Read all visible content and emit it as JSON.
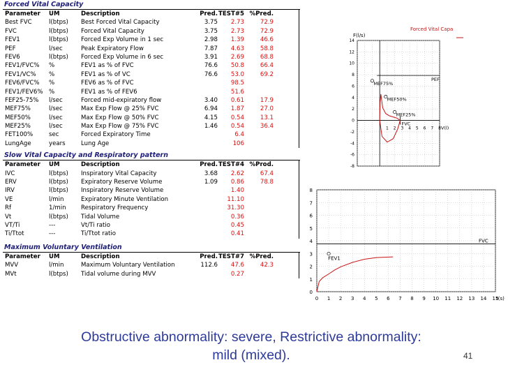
{
  "forced": {
    "title": "Forced Vital Capacity",
    "headers": {
      "param": "Parameter",
      "um": "UM",
      "desc": "Description",
      "pred": "Pred.",
      "test": "TEST#5",
      "pct": "%Pred."
    },
    "rows": [
      {
        "param": "Best FVC",
        "um": "l(btps)",
        "desc": "Best Forced Vital Capacity",
        "pred": "3.75",
        "test": "2.73",
        "pct": "72.9"
      },
      {
        "param": "FVC",
        "um": "l(btps)",
        "desc": "Forced Vital Capacity",
        "pred": "3.75",
        "test": "2.73",
        "pct": "72.9"
      },
      {
        "param": "FEV1",
        "um": "l(btps)",
        "desc": "Forced Exp Volume in 1 sec",
        "pred": "2.98",
        "test": "1.39",
        "pct": "46.6"
      },
      {
        "param": "PEF",
        "um": "l/sec",
        "desc": "Peak Expiratory Flow",
        "pred": "7.87",
        "test": "4.63",
        "pct": "58.8"
      },
      {
        "param": "FEV6",
        "um": "l(btps)",
        "desc": "Forced Exp Volume in 6 sec",
        "pred": "3.91",
        "test": "2.69",
        "pct": "68.8"
      },
      {
        "param": "FEV1/FVC%",
        "um": "%",
        "desc": "FEV1 as % of FVC",
        "pred": "76.6",
        "test": "50.8",
        "pct": "66.4"
      },
      {
        "param": "FEV1/VC%",
        "um": "%",
        "desc": "FEV1 as % of VC",
        "pred": "76.6",
        "test": "53.0",
        "pct": "69.2"
      },
      {
        "param": "FEV6/FVC%",
        "um": "%",
        "desc": "FEV6 as % of FVC",
        "pred": "",
        "test": "98.5",
        "pct": ""
      },
      {
        "param": "FEV1/FEV6%",
        "um": "%",
        "desc": "FEV1 as % of FEV6",
        "pred": "",
        "test": "51.6",
        "pct": ""
      },
      {
        "param": "FEF25-75%",
        "um": "l/sec",
        "desc": "Forced mid-expiratory flow",
        "pred": "3.40",
        "test": "0.61",
        "pct": "17.9"
      },
      {
        "param": "MEF75%",
        "um": "l/sec",
        "desc": "Max Exp Flow @ 25% FVC",
        "pred": "6.94",
        "test": "1.87",
        "pct": "27.0"
      },
      {
        "param": "MEF50%",
        "um": "l/sec",
        "desc": "Max Exp Flow @ 50% FVC",
        "pred": "4.15",
        "test": "0.54",
        "pct": "13.1"
      },
      {
        "param": "MEF25%",
        "um": "l/sec",
        "desc": "Max Exp Flow @ 75% FVC",
        "pred": "1.46",
        "test": "0.54",
        "pct": "36.4"
      },
      {
        "param": "FET100%",
        "um": "sec",
        "desc": "Forced Expiratory Time",
        "pred": "",
        "test": "6.4",
        "pct": ""
      },
      {
        "param": "LungAge",
        "um": "years",
        "desc": "Lung Age",
        "pred": "",
        "test": "106",
        "pct": ""
      }
    ]
  },
  "slow": {
    "title": "Slow Vital Capacity and Respiratory pattern",
    "headers": {
      "param": "Parameter",
      "um": "UM",
      "desc": "Description",
      "pred": "Pred.",
      "test": "TEST#4",
      "pct": "%Prod."
    },
    "rows": [
      {
        "param": "IVC",
        "um": "l(btps)",
        "desc": "Inspiratory Vital Capacity",
        "pred": "3.68",
        "test": "2.62",
        "pct": "67.4"
      },
      {
        "param": "ERV",
        "um": "l(btps)",
        "desc": "Expiratory Reserve Volume",
        "pred": "1.09",
        "test": "0.86",
        "pct": "78.8"
      },
      {
        "param": "IRV",
        "um": "l(btps)",
        "desc": "Inspiratory Reserve Volume",
        "pred": "",
        "test": "1.40",
        "pct": ""
      },
      {
        "param": "VE",
        "um": "l/min",
        "desc": "Expiratory Minute Ventilation",
        "pred": "",
        "test": "11.10",
        "pct": ""
      },
      {
        "param": "Rf",
        "um": "1/min",
        "desc": "Respiratory Frequency",
        "pred": "",
        "test": "31.30",
        "pct": ""
      },
      {
        "param": "Vt",
        "um": "l(btps)",
        "desc": "Tidal Volume",
        "pred": "",
        "test": "0.36",
        "pct": ""
      },
      {
        "param": "VT/Ti",
        "um": "---",
        "desc": "Vt/Ti ratio",
        "pred": "",
        "test": "0.45",
        "pct": ""
      },
      {
        "param": "Ti/Ttot",
        "um": "---",
        "desc": "Ti/Ttot ratio",
        "pred": "",
        "test": "0.41",
        "pct": ""
      }
    ]
  },
  "mvv": {
    "title": "Maximum Voluntary Ventilation",
    "headers": {
      "param": "Parameter",
      "um": "UM",
      "desc": "Description",
      "pred": "Pred.",
      "test": "TEST#7",
      "pct": "%Pred."
    },
    "rows": [
      {
        "param": "MVV",
        "um": "l/min",
        "desc": "Maximum Voluntary Ventilation",
        "pred": "112.6",
        "test": "47.6",
        "pct": "42.3"
      },
      {
        "param": "MVt",
        "um": "l(btps)",
        "desc": "Tidal volume during MVV",
        "pred": "",
        "test": "0.27",
        "pct": ""
      }
    ]
  },
  "chart_data": [
    {
      "type": "line",
      "title": "Forced Vital Capa",
      "ylabel": "F(l/s)",
      "xlabel": "V(l)",
      "xlim": [
        -3,
        8
      ],
      "ylim": [
        -8,
        14
      ],
      "yticks": [
        -8,
        -6,
        -4,
        -2,
        0,
        2,
        4,
        6,
        8,
        10,
        12,
        14
      ],
      "xticks": [
        "1",
        "2",
        "3",
        "4",
        "5",
        "6",
        "7",
        "8"
      ],
      "reference_lines": [
        {
          "label": "PEF",
          "y": 7.87
        },
        {
          "label": "FVC",
          "x": 2.73
        }
      ],
      "markers": [
        {
          "label": "MEF75%",
          "x": -1.0,
          "y": 6.94
        },
        {
          "label": "MEF50%",
          "x": 0.8,
          "y": 4.15
        },
        {
          "label": "MEF25%",
          "x": 2.0,
          "y": 1.46
        }
      ],
      "series": [
        {
          "color": "#c81414",
          "x": [
            0,
            0.05,
            0.15,
            0.4,
            0.8,
            1.3,
            1.8,
            2.3,
            2.73
          ],
          "y": [
            0,
            3.2,
            4.6,
            2.2,
            1.2,
            0.8,
            0.6,
            0.4,
            0
          ]
        },
        {
          "color": "#c81414",
          "x": [
            0,
            0.3,
            1.0,
            1.8,
            2.4,
            2.73
          ],
          "y": [
            0,
            -2.8,
            -3.8,
            -3.2,
            -1.5,
            0
          ]
        }
      ]
    },
    {
      "type": "line",
      "xlabel": "t(s)",
      "xlim": [
        0,
        15
      ],
      "ylim": [
        0,
        8
      ],
      "xticks": [
        "0",
        "1",
        "2",
        "3",
        "4",
        "5",
        "6",
        "7",
        "8",
        "9",
        "10",
        "11",
        "12",
        "13",
        "14",
        "15"
      ],
      "yticks": [
        0,
        1,
        2,
        3,
        4,
        5,
        6,
        7,
        8
      ],
      "reference_lines": [
        {
          "label": "FVC",
          "y": 3.75
        }
      ],
      "markers": [
        {
          "label": "FEV1",
          "x": 1,
          "y": 2.98
        }
      ],
      "series": [
        {
          "color": "#c81414",
          "x": [
            0,
            0.2,
            0.5,
            1,
            1.5,
            2,
            3,
            4,
            5,
            6.4
          ],
          "y": [
            0,
            0.8,
            1.1,
            1.39,
            1.7,
            1.95,
            2.3,
            2.55,
            2.68,
            2.73
          ]
        }
      ]
    }
  ],
  "footer": {
    "line1": "Obstructive abnormality: severe, Restrictive abnormality:",
    "line2": "mild (mixed).",
    "slide_number": "41"
  }
}
